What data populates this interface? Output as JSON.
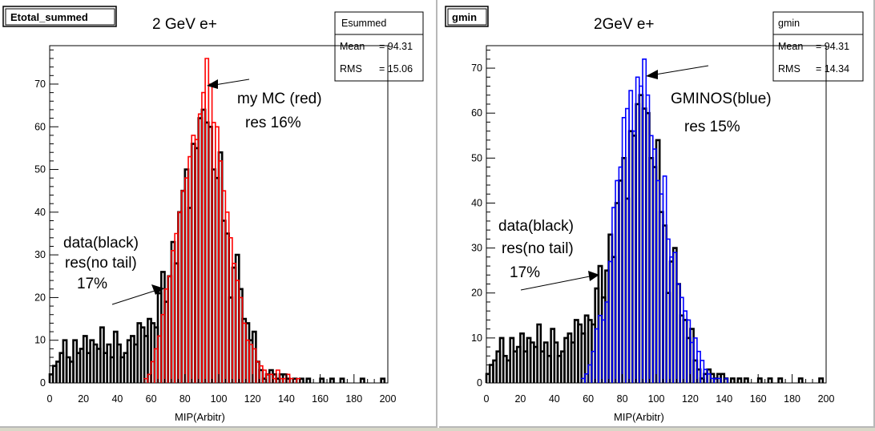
{
  "panels": [
    {
      "tab_label": "Etotal_summed",
      "title": "2 GeV e+",
      "stats": {
        "name": "Esummed",
        "mean_label": "Mean",
        "mean_value": "= 94.31",
        "rms_label": "RMS",
        "rms_value": "= 15.06"
      },
      "annotations": {
        "mc_line1": "my MC (red)",
        "mc_line2": "res 16%",
        "data_line1": "data(black)",
        "data_line2": "res(no tail)",
        "data_line3": "17%"
      }
    },
    {
      "tab_label": "gmin",
      "title": "2GeV e+",
      "stats": {
        "name": "gmin",
        "mean_label": "Mean",
        "mean_value": "= 94.31",
        "rms_label": "RMS",
        "rms_value": "= 14.34"
      },
      "annotations": {
        "mc_line1": "GMINOS(blue)",
        "mc_line2": "res 15%",
        "data_line1": "data(black)",
        "data_line2": "res(no tail)",
        "data_line3": "17%"
      }
    }
  ],
  "chart_data": [
    {
      "type": "histogram",
      "title": "2 GeV e+",
      "xlabel": "MIP(Arbitr)",
      "ylabel": "",
      "xlim": [
        0,
        200
      ],
      "ylim": [
        0,
        79
      ],
      "xticks": [
        0,
        20,
        40,
        60,
        80,
        100,
        120,
        140,
        160,
        180,
        200
      ],
      "yticks": [
        0,
        10,
        20,
        30,
        40,
        50,
        60,
        70
      ],
      "grid": false,
      "series": [
        {
          "name": "data(black)",
          "color": "#000000",
          "bins": [
            [
              0,
              2
            ],
            [
              2,
              4
            ],
            [
              4,
              5
            ],
            [
              6,
              7
            ],
            [
              8,
              10
            ],
            [
              10,
              6
            ],
            [
              12,
              5
            ],
            [
              14,
              10
            ],
            [
              16,
              7
            ],
            [
              18,
              8
            ],
            [
              20,
              11
            ],
            [
              22,
              7
            ],
            [
              24,
              10
            ],
            [
              26,
              9
            ],
            [
              28,
              8
            ],
            [
              30,
              13
            ],
            [
              32,
              7
            ],
            [
              34,
              9
            ],
            [
              36,
              6
            ],
            [
              38,
              12
            ],
            [
              40,
              9
            ],
            [
              42,
              6
            ],
            [
              44,
              7
            ],
            [
              46,
              10
            ],
            [
              48,
              11
            ],
            [
              50,
              9
            ],
            [
              52,
              14
            ],
            [
              54,
              13
            ],
            [
              56,
              11
            ],
            [
              58,
              15
            ],
            [
              60,
              14
            ],
            [
              62,
              13
            ],
            [
              64,
              21
            ],
            [
              66,
              26
            ],
            [
              68,
              19
            ],
            [
              70,
              25
            ],
            [
              72,
              33
            ],
            [
              74,
              28
            ],
            [
              76,
              40
            ],
            [
              78,
              45
            ],
            [
              80,
              50
            ],
            [
              82,
              41
            ],
            [
              84,
              56
            ],
            [
              86,
              55
            ],
            [
              88,
              62
            ],
            [
              90,
              64
            ],
            [
              92,
              61
            ],
            [
              94,
              60
            ],
            [
              96,
              50
            ],
            [
              98,
              48
            ],
            [
              100,
              54
            ],
            [
              102,
              38
            ],
            [
              104,
              35
            ],
            [
              106,
              20
            ],
            [
              108,
              27
            ],
            [
              110,
              30
            ],
            [
              112,
              22
            ],
            [
              114,
              15
            ],
            [
              116,
              14
            ],
            [
              118,
              10
            ],
            [
              120,
              12
            ],
            [
              122,
              5
            ],
            [
              124,
              3
            ],
            [
              126,
              1
            ],
            [
              128,
              2
            ],
            [
              130,
              3
            ],
            [
              132,
              2
            ],
            [
              134,
              1
            ],
            [
              136,
              2
            ],
            [
              138,
              2
            ],
            [
              140,
              1
            ],
            [
              144,
              1
            ],
            [
              148,
              1
            ],
            [
              152,
              1
            ],
            [
              160,
              1
            ],
            [
              166,
              1
            ],
            [
              172,
              1
            ],
            [
              184,
              1
            ],
            [
              196,
              1
            ]
          ]
        },
        {
          "name": "my MC (red)",
          "color": "#ff0000",
          "bins": [
            [
              56,
              1
            ],
            [
              58,
              2
            ],
            [
              60,
              5
            ],
            [
              62,
              8
            ],
            [
              64,
              11
            ],
            [
              66,
              16
            ],
            [
              68,
              22
            ],
            [
              70,
              25
            ],
            [
              72,
              31
            ],
            [
              74,
              35
            ],
            [
              76,
              40
            ],
            [
              78,
              45
            ],
            [
              80,
              48
            ],
            [
              82,
              53
            ],
            [
              84,
              58
            ],
            [
              86,
              57
            ],
            [
              88,
              63
            ],
            [
              90,
              68
            ],
            [
              92,
              76
            ],
            [
              94,
              70
            ],
            [
              96,
              61
            ],
            [
              98,
              60
            ],
            [
              100,
              52
            ],
            [
              102,
              45
            ],
            [
              104,
              40
            ],
            [
              106,
              34
            ],
            [
              108,
              28
            ],
            [
              110,
              24
            ],
            [
              112,
              20
            ],
            [
              114,
              14
            ],
            [
              116,
              10
            ],
            [
              118,
              9
            ],
            [
              120,
              8
            ],
            [
              122,
              5
            ],
            [
              124,
              4
            ],
            [
              126,
              3
            ],
            [
              128,
              2
            ],
            [
              130,
              2
            ],
            [
              132,
              1
            ],
            [
              134,
              3
            ],
            [
              136,
              1
            ],
            [
              138,
              1
            ],
            [
              140,
              2
            ],
            [
              142,
              1
            ],
            [
              146,
              1
            ]
          ]
        }
      ],
      "stats": {
        "name": "Esummed",
        "mean": 94.31,
        "rms": 15.06
      }
    },
    {
      "type": "histogram",
      "title": "2GeV e+",
      "xlabel": "MIP(Arbitr)",
      "ylabel": "",
      "xlim": [
        0,
        200
      ],
      "ylim": [
        0,
        75
      ],
      "xticks": [
        0,
        20,
        40,
        60,
        80,
        100,
        120,
        140,
        160,
        180,
        200
      ],
      "yticks": [
        0,
        10,
        20,
        30,
        40,
        50,
        60,
        70
      ],
      "grid": false,
      "series": [
        {
          "name": "data(black)",
          "color": "#000000",
          "bins": [
            [
              0,
              2
            ],
            [
              2,
              4
            ],
            [
              4,
              5
            ],
            [
              6,
              7
            ],
            [
              8,
              10
            ],
            [
              10,
              6
            ],
            [
              12,
              5
            ],
            [
              14,
              10
            ],
            [
              16,
              7
            ],
            [
              18,
              8
            ],
            [
              20,
              11
            ],
            [
              22,
              7
            ],
            [
              24,
              10
            ],
            [
              26,
              9
            ],
            [
              28,
              8
            ],
            [
              30,
              13
            ],
            [
              32,
              7
            ],
            [
              34,
              9
            ],
            [
              36,
              6
            ],
            [
              38,
              12
            ],
            [
              40,
              9
            ],
            [
              42,
              6
            ],
            [
              44,
              7
            ],
            [
              46,
              10
            ],
            [
              48,
              11
            ],
            [
              50,
              9
            ],
            [
              52,
              14
            ],
            [
              54,
              13
            ],
            [
              56,
              11
            ],
            [
              58,
              15
            ],
            [
              60,
              14
            ],
            [
              62,
              13
            ],
            [
              64,
              21
            ],
            [
              66,
              26
            ],
            [
              68,
              19
            ],
            [
              70,
              25
            ],
            [
              72,
              33
            ],
            [
              74,
              28
            ],
            [
              76,
              40
            ],
            [
              78,
              45
            ],
            [
              80,
              50
            ],
            [
              82,
              41
            ],
            [
              84,
              56
            ],
            [
              86,
              55
            ],
            [
              88,
              62
            ],
            [
              90,
              64
            ],
            [
              92,
              61
            ],
            [
              94,
              60
            ],
            [
              96,
              50
            ],
            [
              98,
              48
            ],
            [
              100,
              54
            ],
            [
              102,
              38
            ],
            [
              104,
              35
            ],
            [
              106,
              20
            ],
            [
              108,
              27
            ],
            [
              110,
              30
            ],
            [
              112,
              22
            ],
            [
              114,
              15
            ],
            [
              116,
              14
            ],
            [
              118,
              10
            ],
            [
              120,
              12
            ],
            [
              122,
              5
            ],
            [
              124,
              3
            ],
            [
              126,
              1
            ],
            [
              128,
              2
            ],
            [
              130,
              3
            ],
            [
              132,
              2
            ],
            [
              134,
              1
            ],
            [
              136,
              2
            ],
            [
              138,
              2
            ],
            [
              140,
              1
            ],
            [
              144,
              1
            ],
            [
              148,
              1
            ],
            [
              152,
              1
            ],
            [
              160,
              1
            ],
            [
              166,
              1
            ],
            [
              172,
              1
            ],
            [
              184,
              1
            ],
            [
              196,
              1
            ]
          ]
        },
        {
          "name": "GMINOS(blue)",
          "color": "#0000ff",
          "bins": [
            [
              56,
              1
            ],
            [
              58,
              2
            ],
            [
              60,
              4
            ],
            [
              62,
              7
            ],
            [
              64,
              12
            ],
            [
              66,
              15
            ],
            [
              68,
              14
            ],
            [
              70,
              18
            ],
            [
              72,
              27
            ],
            [
              74,
              39
            ],
            [
              76,
              45
            ],
            [
              78,
              48
            ],
            [
              80,
              59
            ],
            [
              82,
              61
            ],
            [
              84,
              65
            ],
            [
              86,
              56
            ],
            [
              88,
              68
            ],
            [
              90,
              66
            ],
            [
              92,
              72
            ],
            [
              94,
              64
            ],
            [
              96,
              55
            ],
            [
              98,
              52
            ],
            [
              100,
              45
            ],
            [
              102,
              42
            ],
            [
              104,
              46
            ],
            [
              106,
              32
            ],
            [
              108,
              28
            ],
            [
              110,
              29
            ],
            [
              112,
              22
            ],
            [
              114,
              19
            ],
            [
              116,
              16
            ],
            [
              118,
              14
            ],
            [
              120,
              9
            ],
            [
              122,
              10
            ],
            [
              124,
              7
            ],
            [
              126,
              5
            ],
            [
              128,
              3
            ],
            [
              130,
              2
            ],
            [
              132,
              1
            ],
            [
              134,
              1
            ],
            [
              136,
              1
            ],
            [
              140,
              1
            ]
          ]
        }
      ],
      "stats": {
        "name": "gmin",
        "mean": 94.31,
        "rms": 14.34
      }
    }
  ]
}
